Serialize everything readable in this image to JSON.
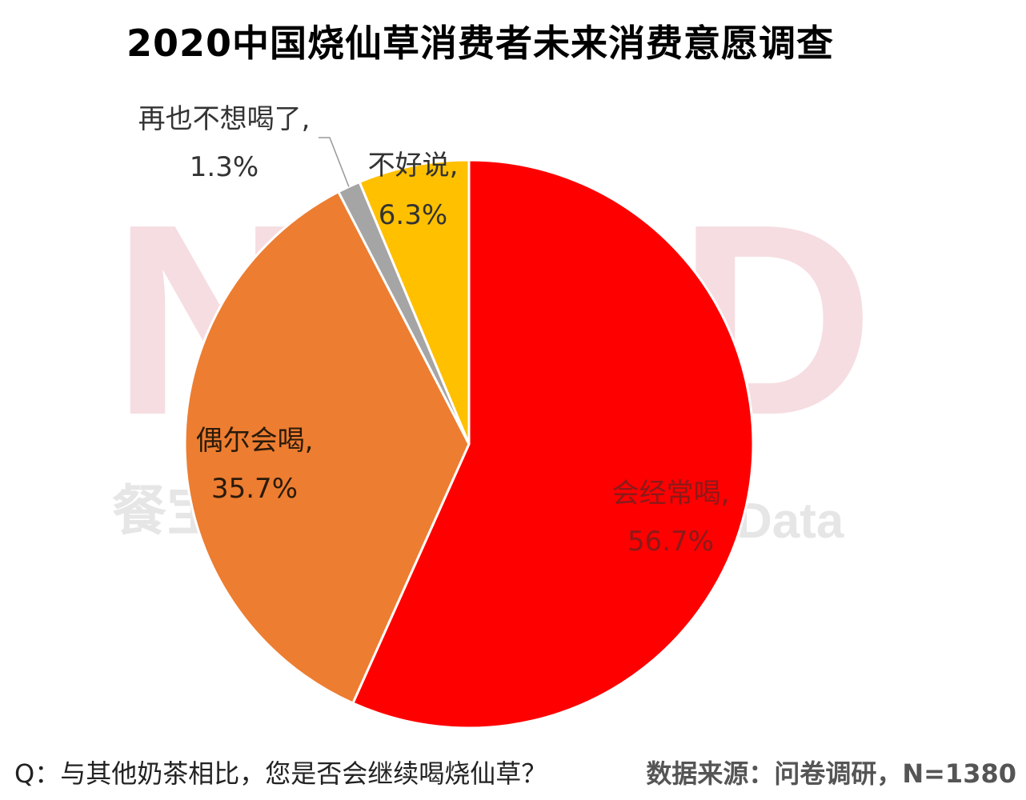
{
  "chart_data": {
    "type": "pie",
    "title": "2020中国烧仙草消费者未来消费意愿调查",
    "slices": [
      {
        "name": "会经常喝,",
        "value": 56.7,
        "label": "56.7%",
        "color": "#ff0000"
      },
      {
        "name": "偶尔会喝,",
        "value": 35.7,
        "label": "35.7%",
        "color": "#ed7d31"
      },
      {
        "name": "再也不想喝了,",
        "value": 1.3,
        "label": "1.3%",
        "color": "#a5a5a5"
      },
      {
        "name": "不好说,",
        "value": 6.3,
        "label": "6.3%",
        "color": "#ffc000"
      }
    ]
  },
  "watermark": {
    "big": "NCBD",
    "small_left": "餐宝",
    "small_right": "Data"
  },
  "footer": {
    "question": "Q：与其他奶茶相比，您是否会继续喝烧仙草？",
    "source": "数据来源：问卷调研，N=1380"
  }
}
